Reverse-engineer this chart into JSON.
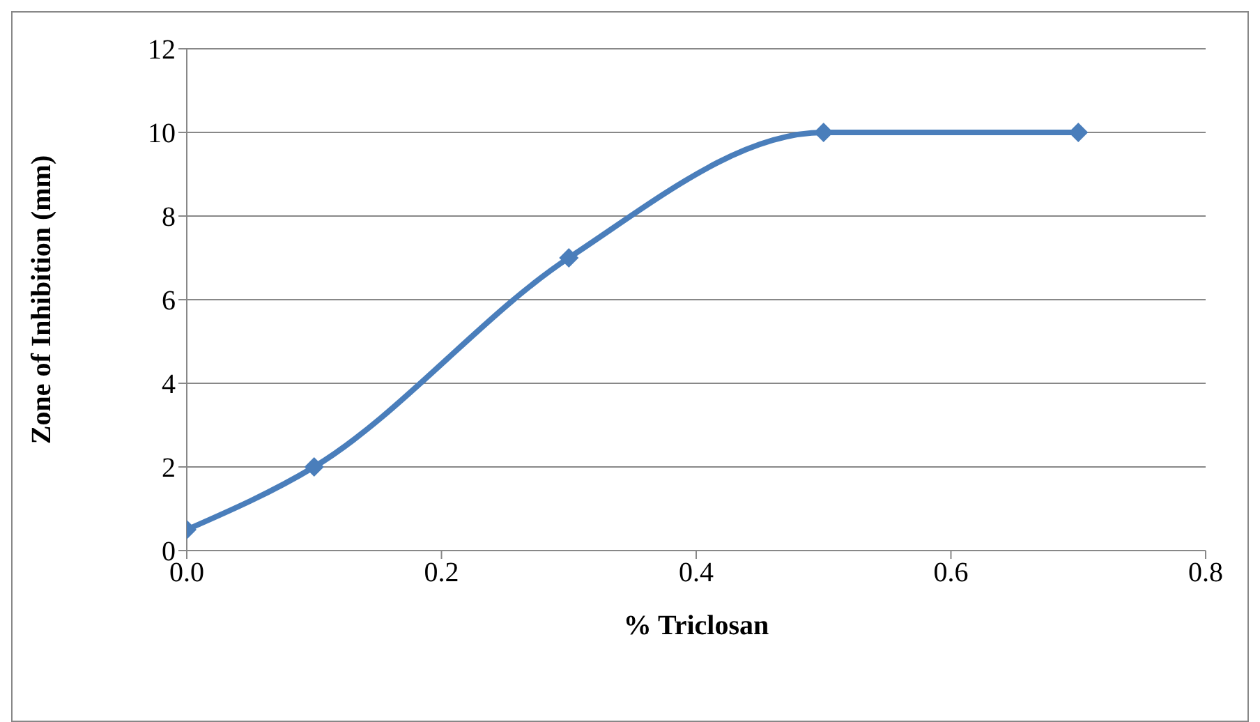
{
  "chart_data": {
    "type": "line",
    "xlabel": "% Triclosan",
    "ylabel": "Zone of Inhibition (mm)",
    "x": [
      0.0,
      0.1,
      0.3,
      0.5,
      0.7
    ],
    "series": [
      {
        "color": "#4a7ebb",
        "values": [
          0.5,
          2,
          7,
          10,
          10
        ]
      }
    ],
    "xlim": [
      0,
      0.8
    ],
    "xticks": [
      {
        "value": 0,
        "label": "0.0"
      },
      {
        "value": 0.2,
        "label": "0.2"
      },
      {
        "value": 0.4,
        "label": "0.4"
      },
      {
        "value": 0.6,
        "label": "0.6"
      },
      {
        "value": 0.8,
        "label": "0.8"
      }
    ],
    "ylim": [
      0,
      12
    ],
    "yticks": [
      0,
      2,
      4,
      6,
      8,
      10,
      12
    ],
    "grid": "y",
    "marker": "diamond",
    "line_style": "solid"
  }
}
